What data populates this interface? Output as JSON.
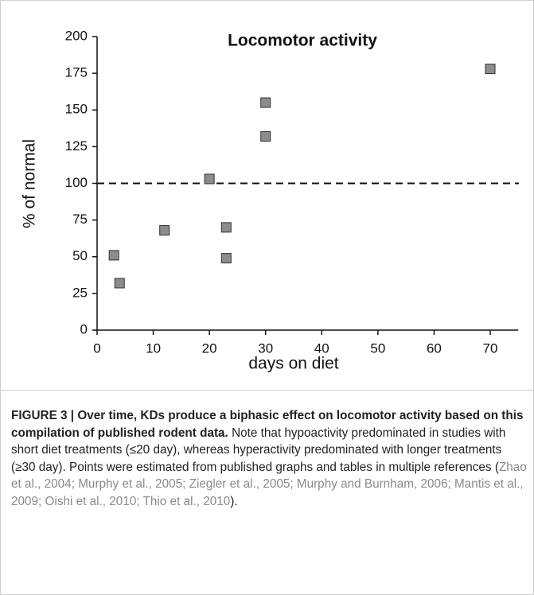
{
  "chart_data": {
    "type": "scatter",
    "title": "Locomotor activity",
    "xlabel": "days on diet",
    "ylabel": "% of normal",
    "x": [
      3,
      4,
      12,
      20,
      23,
      23,
      30,
      30,
      70
    ],
    "values": [
      51,
      32,
      68,
      103,
      70,
      49,
      155,
      132,
      178
    ],
    "color": "#8c8c8c",
    "xlim": [
      0,
      75
    ],
    "xticks": [
      0,
      10,
      20,
      30,
      40,
      50,
      60,
      70
    ],
    "ylim": [
      0,
      200
    ],
    "yticks": [
      0,
      25,
      50,
      75,
      100,
      125,
      150,
      175,
      200
    ],
    "reference_line": 100,
    "grid": false
  },
  "caption": {
    "title": "FIGURE 3 | Over time, KDs produce a biphasic effect on locomotor activity based on this compilation of published rodent data.",
    "body": "Note that hypoactivity predominated in studies with short diet treatments (≤20 day), whereas hyperactivity predominated with longer treatments (≥30 day). Points were estimated from published graphs and tables in multiple references (",
    "references": "Zhao et al., 2004; Murphy et al., 2005; Ziegler et al., 2005; Murphy and Burnham, 2006; Mantis et al., 2009; Oishi et al., 2010; Thio et al., 2010",
    "end": ")."
  }
}
